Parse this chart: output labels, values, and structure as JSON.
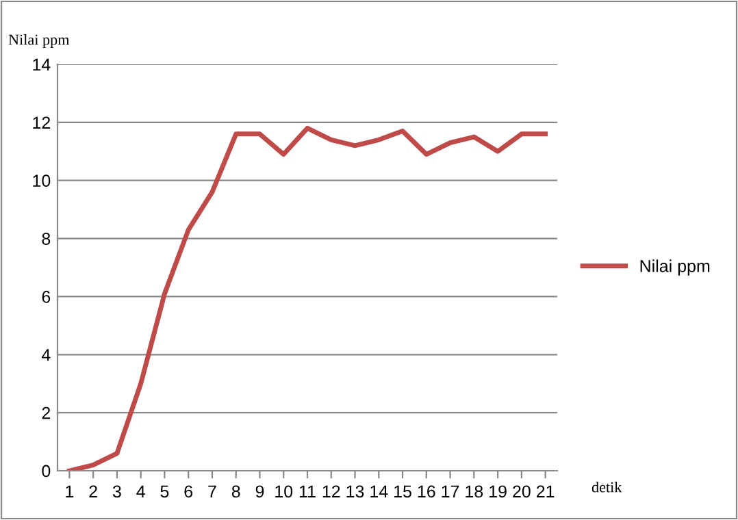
{
  "chart_data": {
    "type": "line",
    "ylabel": "Nilai ppm",
    "xlabel": "detik",
    "categories": [
      "1",
      "2",
      "3",
      "4",
      "5",
      "6",
      "7",
      "8",
      "9",
      "10",
      "11",
      "12",
      "13",
      "14",
      "15",
      "16",
      "17",
      "18",
      "19",
      "20",
      "21"
    ],
    "series": [
      {
        "name": "Nilai ppm",
        "color": "#be4b48",
        "values": [
          0,
          0.2,
          0.6,
          3.0,
          6.1,
          8.3,
          9.6,
          11.6,
          11.6,
          10.9,
          11.8,
          11.4,
          11.2,
          11.4,
          11.7,
          10.9,
          11.3,
          11.5,
          11.0,
          11.6,
          11.6
        ]
      }
    ],
    "ylim": [
      0,
      14
    ],
    "yticks": [
      0,
      2,
      4,
      6,
      8,
      10,
      12,
      14
    ],
    "grid": "y",
    "legend": "right",
    "marker": "none",
    "line_style": "solid"
  }
}
